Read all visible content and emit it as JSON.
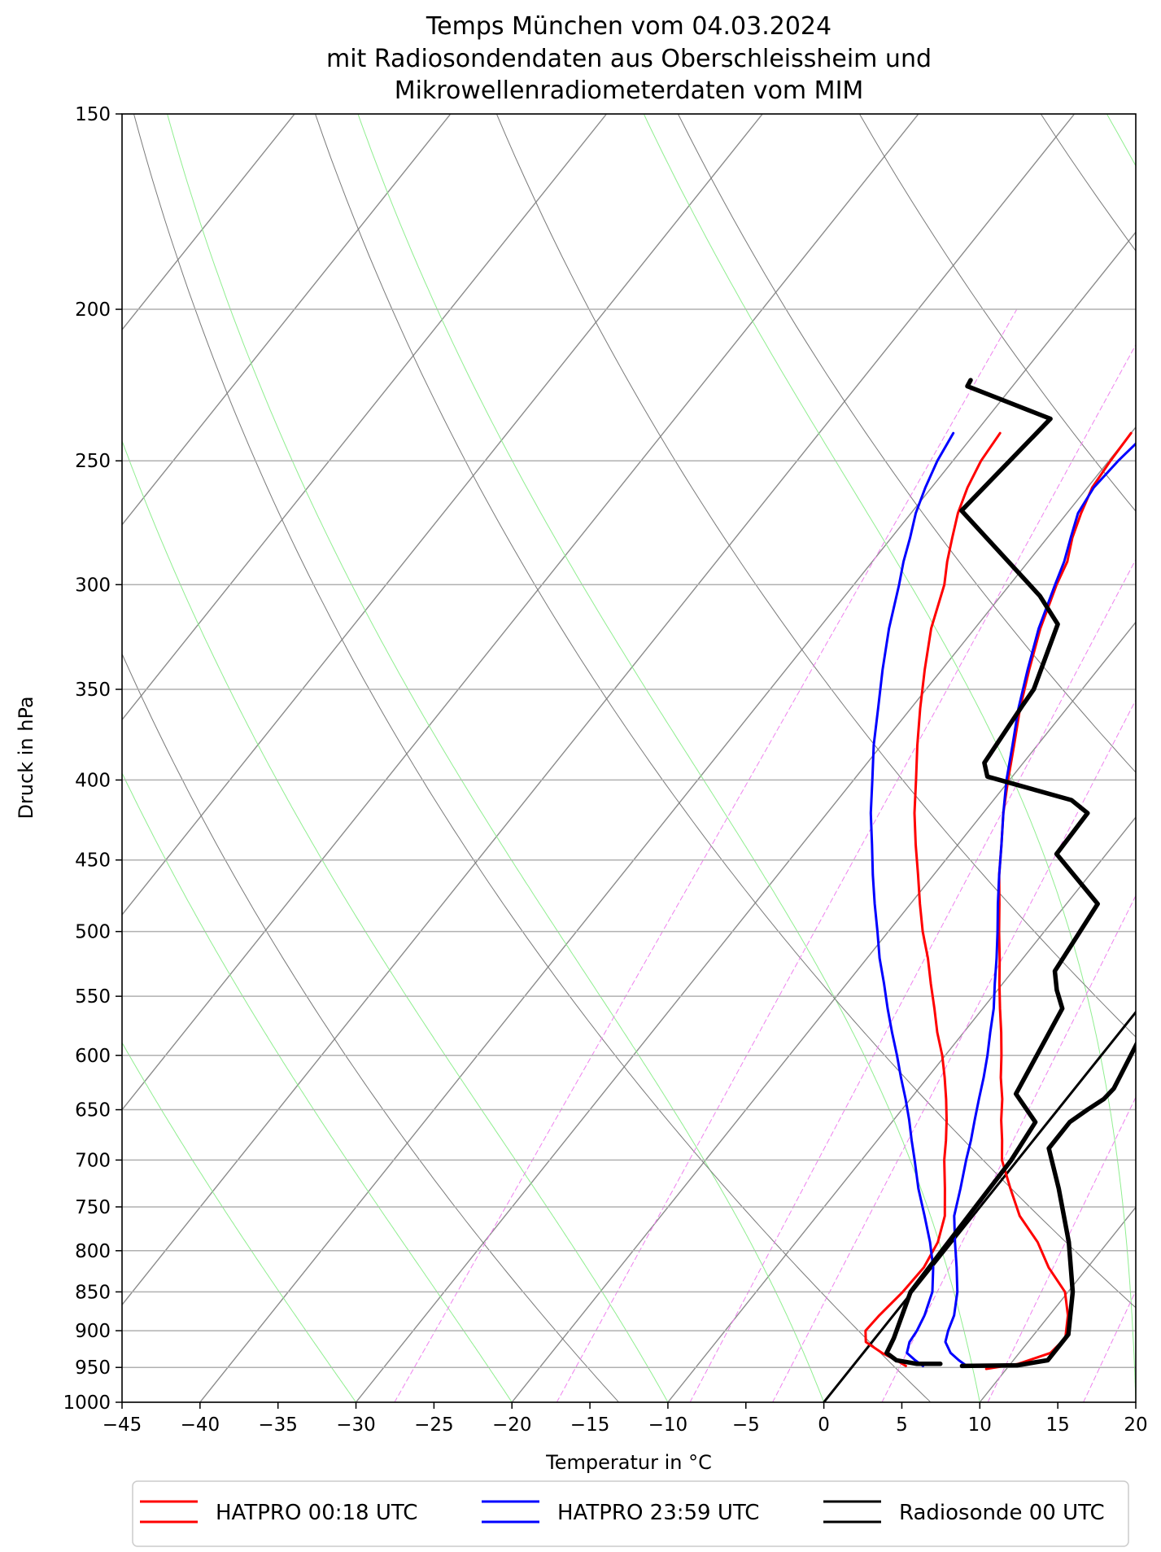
{
  "chart_data": {
    "type": "line",
    "subtype": "skew-T log-P diagram",
    "title": [
      "Temps München vom 04.03.2024",
      "mit Radiosondendaten aus Oberschleissheim und",
      "Mikrowellenradiometerdaten vom MIM"
    ],
    "xlabel": "Temperatur in $^\\circ$C",
    "xlabel_text": "Temperatur in °C",
    "ylabel": "Druck in hPa",
    "xlim": [
      -45,
      20
    ],
    "ylim": [
      1000,
      150
    ],
    "yscale": "log",
    "skew": true,
    "grid": true,
    "legend_position": "bottom",
    "x_ticks": [
      -45,
      -40,
      -35,
      -30,
      -25,
      -20,
      -15,
      -10,
      -5,
      0,
      5,
      10,
      15,
      20
    ],
    "x_tick_labels": [
      "−45",
      "−40",
      "−35",
      "−30",
      "−25",
      "−20",
      "−15",
      "−10",
      "−5",
      "0",
      "5",
      "10",
      "15",
      "20"
    ],
    "y_ticks": [
      150,
      200,
      250,
      300,
      350,
      400,
      450,
      500,
      550,
      600,
      650,
      700,
      750,
      800,
      850,
      900,
      950,
      1000
    ],
    "y_tick_labels": [
      "150",
      "200",
      "250",
      "300",
      "350",
      "400",
      "450",
      "500",
      "550",
      "600",
      "650",
      "700",
      "750",
      "800",
      "850",
      "900",
      "950",
      "1000"
    ],
    "isotherm_temps": [
      -100,
      -90,
      -80,
      -70,
      -60,
      -50,
      -40,
      -30,
      -20,
      -10,
      0,
      10,
      20
    ],
    "dry_adiabat_thetas": [
      260,
      280,
      300,
      320,
      340,
      360,
      380,
      400,
      420,
      440
    ],
    "moist_adiabat_starts": [
      -30,
      -20,
      -10,
      0,
      10,
      20,
      30,
      40
    ],
    "mixing_ratios": [
      0.4,
      1,
      2,
      3,
      5,
      8,
      12,
      16,
      20,
      28,
      36,
      44,
      52
    ],
    "mixing_ratio_top": 200,
    "colors": {
      "isotherm": "#8c8c8c",
      "dry_adiabat": "#7a7a7a",
      "moist_adiabat": "#90ee90",
      "mixing_ratio": "#ee82ee",
      "pressure_grid": "#b0b0b0",
      "zero_isotherm": "#000000"
    },
    "series": [
      {
        "name": "HATPRO 00:18 UTC",
        "color": "#ff0000",
        "width": 3,
        "points": [
          [
            -30.0,
            240
          ],
          [
            -29.9,
            250
          ],
          [
            -29.7,
            260
          ],
          [
            -29.1,
            270
          ],
          [
            -28.4,
            280
          ],
          [
            -27.5,
            290
          ],
          [
            -27.0,
            300
          ],
          [
            -25.8,
            320
          ],
          [
            -24.4,
            340
          ],
          [
            -23.0,
            360
          ],
          [
            -21.5,
            380
          ],
          [
            -20.1,
            400
          ],
          [
            -18.7,
            420
          ],
          [
            -17.2,
            440
          ],
          [
            -15.8,
            460
          ],
          [
            -14.3,
            480
          ],
          [
            -12.9,
            500
          ],
          [
            -11.5,
            520
          ],
          [
            -10.2,
            540
          ],
          [
            -8.9,
            560
          ],
          [
            -7.6,
            580
          ],
          [
            -6.4,
            600
          ],
          [
            -5.3,
            620
          ],
          [
            -4.1,
            640
          ],
          [
            -3.1,
            660
          ],
          [
            -2.0,
            680
          ],
          [
            -1.0,
            700
          ],
          [
            1.0,
            730
          ],
          [
            3.0,
            760
          ],
          [
            5.5,
            790
          ],
          [
            7.5,
            820
          ],
          [
            9.8,
            850
          ],
          [
            11.2,
            880
          ],
          [
            12.2,
            910
          ],
          [
            12.0,
            930
          ],
          [
            10.5,
            945
          ],
          [
            8.7,
            952
          ]
        ]
      },
      {
        "name": "HATPRO 00:18 UTC",
        "color": "#ff0000",
        "width": 3,
        "points": [
          [
            -38.4,
            240
          ],
          [
            -38.2,
            250
          ],
          [
            -37.7,
            260
          ],
          [
            -37.0,
            270
          ],
          [
            -36.1,
            280
          ],
          [
            -35.2,
            290
          ],
          [
            -34.2,
            300
          ],
          [
            -32.8,
            320
          ],
          [
            -31.1,
            340
          ],
          [
            -29.4,
            360
          ],
          [
            -27.7,
            380
          ],
          [
            -26.0,
            400
          ],
          [
            -24.4,
            420
          ],
          [
            -22.7,
            440
          ],
          [
            -21.0,
            460
          ],
          [
            -19.4,
            480
          ],
          [
            -17.8,
            500
          ],
          [
            -16.1,
            520
          ],
          [
            -14.6,
            540
          ],
          [
            -13.1,
            560
          ],
          [
            -11.7,
            580
          ],
          [
            -10.2,
            600
          ],
          [
            -8.9,
            620
          ],
          [
            -7.7,
            640
          ],
          [
            -6.6,
            660
          ],
          [
            -5.6,
            680
          ],
          [
            -4.7,
            700
          ],
          [
            -3.2,
            730
          ],
          [
            -1.8,
            760
          ],
          [
            -0.9,
            790
          ],
          [
            -0.5,
            820
          ],
          [
            -0.6,
            850
          ],
          [
            -0.9,
            880
          ],
          [
            -1.0,
            900
          ],
          [
            -0.4,
            915
          ],
          [
            1.2,
            930
          ],
          [
            2.5,
            940
          ],
          [
            3.4,
            948
          ]
        ]
      },
      {
        "name": "HATPRO 23:59 UTC",
        "color": "#0000ff",
        "width": 3,
        "points": [
          [
            -29.0,
            240
          ],
          [
            -29.4,
            250
          ],
          [
            -29.6,
            260
          ],
          [
            -29.3,
            270
          ],
          [
            -28.5,
            280
          ],
          [
            -27.7,
            290
          ],
          [
            -27.1,
            300
          ],
          [
            -25.9,
            320
          ],
          [
            -24.5,
            340
          ],
          [
            -23.1,
            360
          ],
          [
            -21.6,
            380
          ],
          [
            -20.2,
            400
          ],
          [
            -18.7,
            420
          ],
          [
            -17.2,
            440
          ],
          [
            -15.8,
            460
          ],
          [
            -14.4,
            480
          ],
          [
            -13.0,
            500
          ],
          [
            -11.7,
            520
          ],
          [
            -10.5,
            540
          ],
          [
            -9.3,
            560
          ],
          [
            -8.3,
            580
          ],
          [
            -7.3,
            600
          ],
          [
            -6.4,
            620
          ],
          [
            -5.6,
            640
          ],
          [
            -4.8,
            660
          ],
          [
            -4.0,
            680
          ],
          [
            -3.3,
            700
          ],
          [
            -2.2,
            730
          ],
          [
            -1.2,
            760
          ],
          [
            0.2,
            790
          ],
          [
            1.6,
            820
          ],
          [
            2.9,
            850
          ],
          [
            3.9,
            880
          ],
          [
            4.3,
            900
          ],
          [
            4.7,
            915
          ],
          [
            5.6,
            930
          ],
          [
            6.5,
            940
          ],
          [
            7.3,
            948
          ]
        ]
      },
      {
        "name": "HATPRO 23:59 UTC",
        "color": "#0000ff",
        "width": 3,
        "points": [
          [
            -41.4,
            240
          ],
          [
            -41.0,
            250
          ],
          [
            -40.4,
            260
          ],
          [
            -39.7,
            270
          ],
          [
            -38.8,
            280
          ],
          [
            -38.0,
            290
          ],
          [
            -37.1,
            300
          ],
          [
            -35.5,
            320
          ],
          [
            -33.8,
            340
          ],
          [
            -32.1,
            360
          ],
          [
            -30.5,
            380
          ],
          [
            -28.8,
            400
          ],
          [
            -27.2,
            420
          ],
          [
            -25.5,
            440
          ],
          [
            -23.9,
            460
          ],
          [
            -22.3,
            480
          ],
          [
            -20.7,
            500
          ],
          [
            -19.2,
            520
          ],
          [
            -17.6,
            540
          ],
          [
            -16.1,
            560
          ],
          [
            -14.6,
            580
          ],
          [
            -13.1,
            600
          ],
          [
            -11.7,
            620
          ],
          [
            -10.3,
            640
          ],
          [
            -9.0,
            660
          ],
          [
            -7.8,
            680
          ],
          [
            -6.6,
            700
          ],
          [
            -4.9,
            730
          ],
          [
            -3.1,
            760
          ],
          [
            -1.4,
            790
          ],
          [
            0.1,
            820
          ],
          [
            1.3,
            850
          ],
          [
            2.0,
            880
          ],
          [
            2.3,
            900
          ],
          [
            2.4,
            915
          ],
          [
            2.8,
            930
          ],
          [
            3.7,
            940
          ],
          [
            4.5,
            948
          ]
        ]
      },
      {
        "name": "Radiosonde 00 UTC",
        "color": "#000000",
        "width": 5.5,
        "points": [
          [
            -1.1,
            150
          ],
          [
            -2.5,
            165
          ],
          [
            -1.6,
            175
          ],
          [
            -1.8,
            200
          ],
          [
            -2.5,
            215
          ],
          [
            -5.6,
            222
          ],
          [
            -7.7,
            227
          ],
          [
            -7.4,
            250
          ],
          [
            -6.3,
            270
          ],
          [
            -4.9,
            300
          ],
          [
            -3.6,
            330
          ],
          [
            -2.3,
            370
          ],
          [
            -2.0,
            400
          ],
          [
            -0.8,
            425
          ],
          [
            1.0,
            450
          ],
          [
            0.5,
            480
          ],
          [
            1.5,
            550
          ],
          [
            1.1,
            563
          ],
          [
            2.5,
            630
          ],
          [
            2.4,
            640
          ],
          [
            1.9,
            650
          ],
          [
            1.4,
            662
          ],
          [
            1.4,
            688
          ],
          [
            4.1,
            730
          ],
          [
            7.5,
            790
          ],
          [
            10.3,
            850
          ],
          [
            12.2,
            905
          ],
          [
            12.2,
            940
          ],
          [
            10.5,
            947
          ],
          [
            7.0,
            948
          ]
        ]
      },
      {
        "name": "Radiosonde 00 UTC",
        "color": "#000000",
        "width": 5.5,
        "points": [
          [
            -43.0,
            222
          ],
          [
            -42.9,
            224
          ],
          [
            -35.9,
            235
          ],
          [
            -36.9,
            269
          ],
          [
            -27.5,
            305
          ],
          [
            -24.9,
            318
          ],
          [
            -23.1,
            350
          ],
          [
            -23.0,
            358
          ],
          [
            -22.5,
            390
          ],
          [
            -21.6,
            398
          ],
          [
            -15.0,
            412
          ],
          [
            -13.3,
            420
          ],
          [
            -13.2,
            446
          ],
          [
            -8.0,
            480
          ],
          [
            -7.3,
            530
          ],
          [
            -6.2,
            545
          ],
          [
            -4.9,
            560
          ],
          [
            -3.5,
            635
          ],
          [
            -0.8,
            662
          ],
          [
            -0.4,
            700
          ],
          [
            -0.2,
            800
          ],
          [
            -0.1,
            850
          ],
          [
            1.2,
            910
          ],
          [
            1.5,
            930
          ],
          [
            2.5,
            940
          ],
          [
            4.0,
            945
          ],
          [
            5.5,
            945
          ]
        ]
      }
    ],
    "legend": [
      {
        "label": "HATPRO 00:18 UTC",
        "color": "#ff0000"
      },
      {
        "label": "HATPRO 23:59 UTC",
        "color": "#0000ff"
      },
      {
        "label": "Radiosonde 00 UTC",
        "color": "#000000"
      }
    ]
  }
}
